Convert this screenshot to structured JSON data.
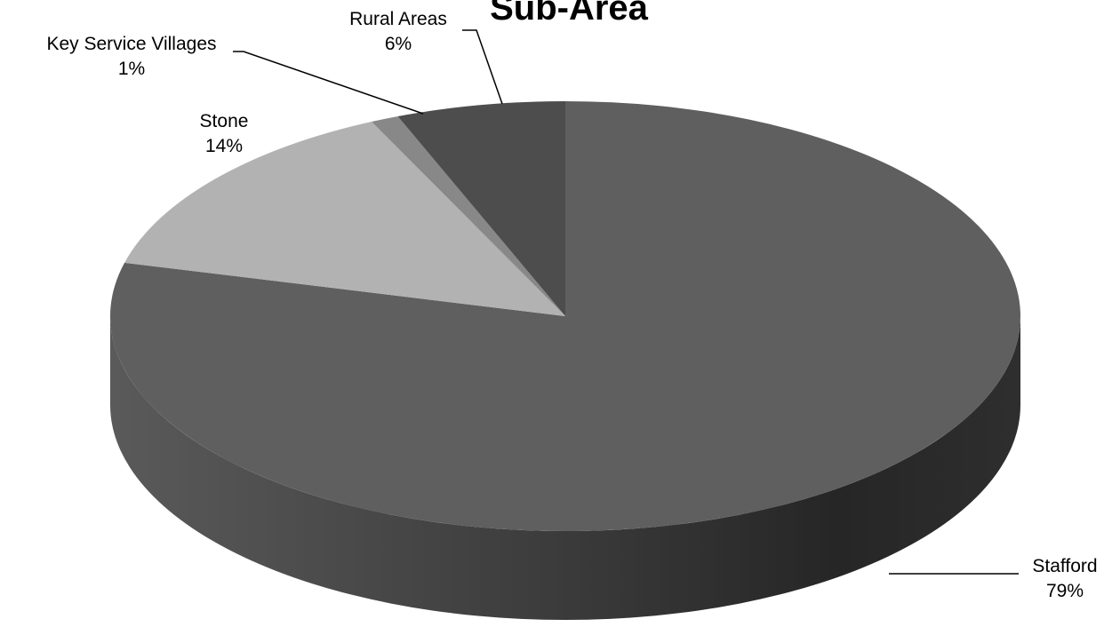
{
  "chart_data": {
    "type": "pie",
    "title": "Sub-Area",
    "style": "3d",
    "slices": [
      {
        "label": "Stafford",
        "value": 79,
        "percent_label": "79%",
        "color": "#5f5f5f",
        "side_color": "#3a3a3a"
      },
      {
        "label": "Stone",
        "value": 14,
        "percent_label": "14%",
        "color": "#b2b2b2",
        "side_color": "#8a8a8a"
      },
      {
        "label": "Key Service Villages",
        "value": 1,
        "percent_label": "1%",
        "color": "#888888",
        "side_color": "#666666"
      },
      {
        "label": "Rural Areas",
        "value": 6,
        "percent_label": "6%",
        "color": "#4d4d4d",
        "side_color": "#333333"
      }
    ],
    "legend": "none"
  }
}
